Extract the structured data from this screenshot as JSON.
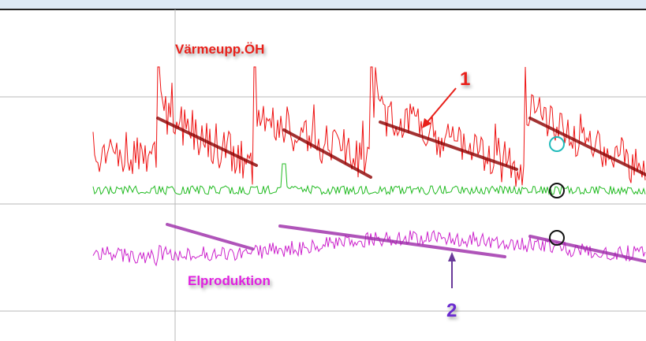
{
  "labels": {
    "heat": "Värmeupp.ÖH",
    "power": "Elproduktion"
  },
  "annotations": {
    "first": "1",
    "second": "2"
  }
}
